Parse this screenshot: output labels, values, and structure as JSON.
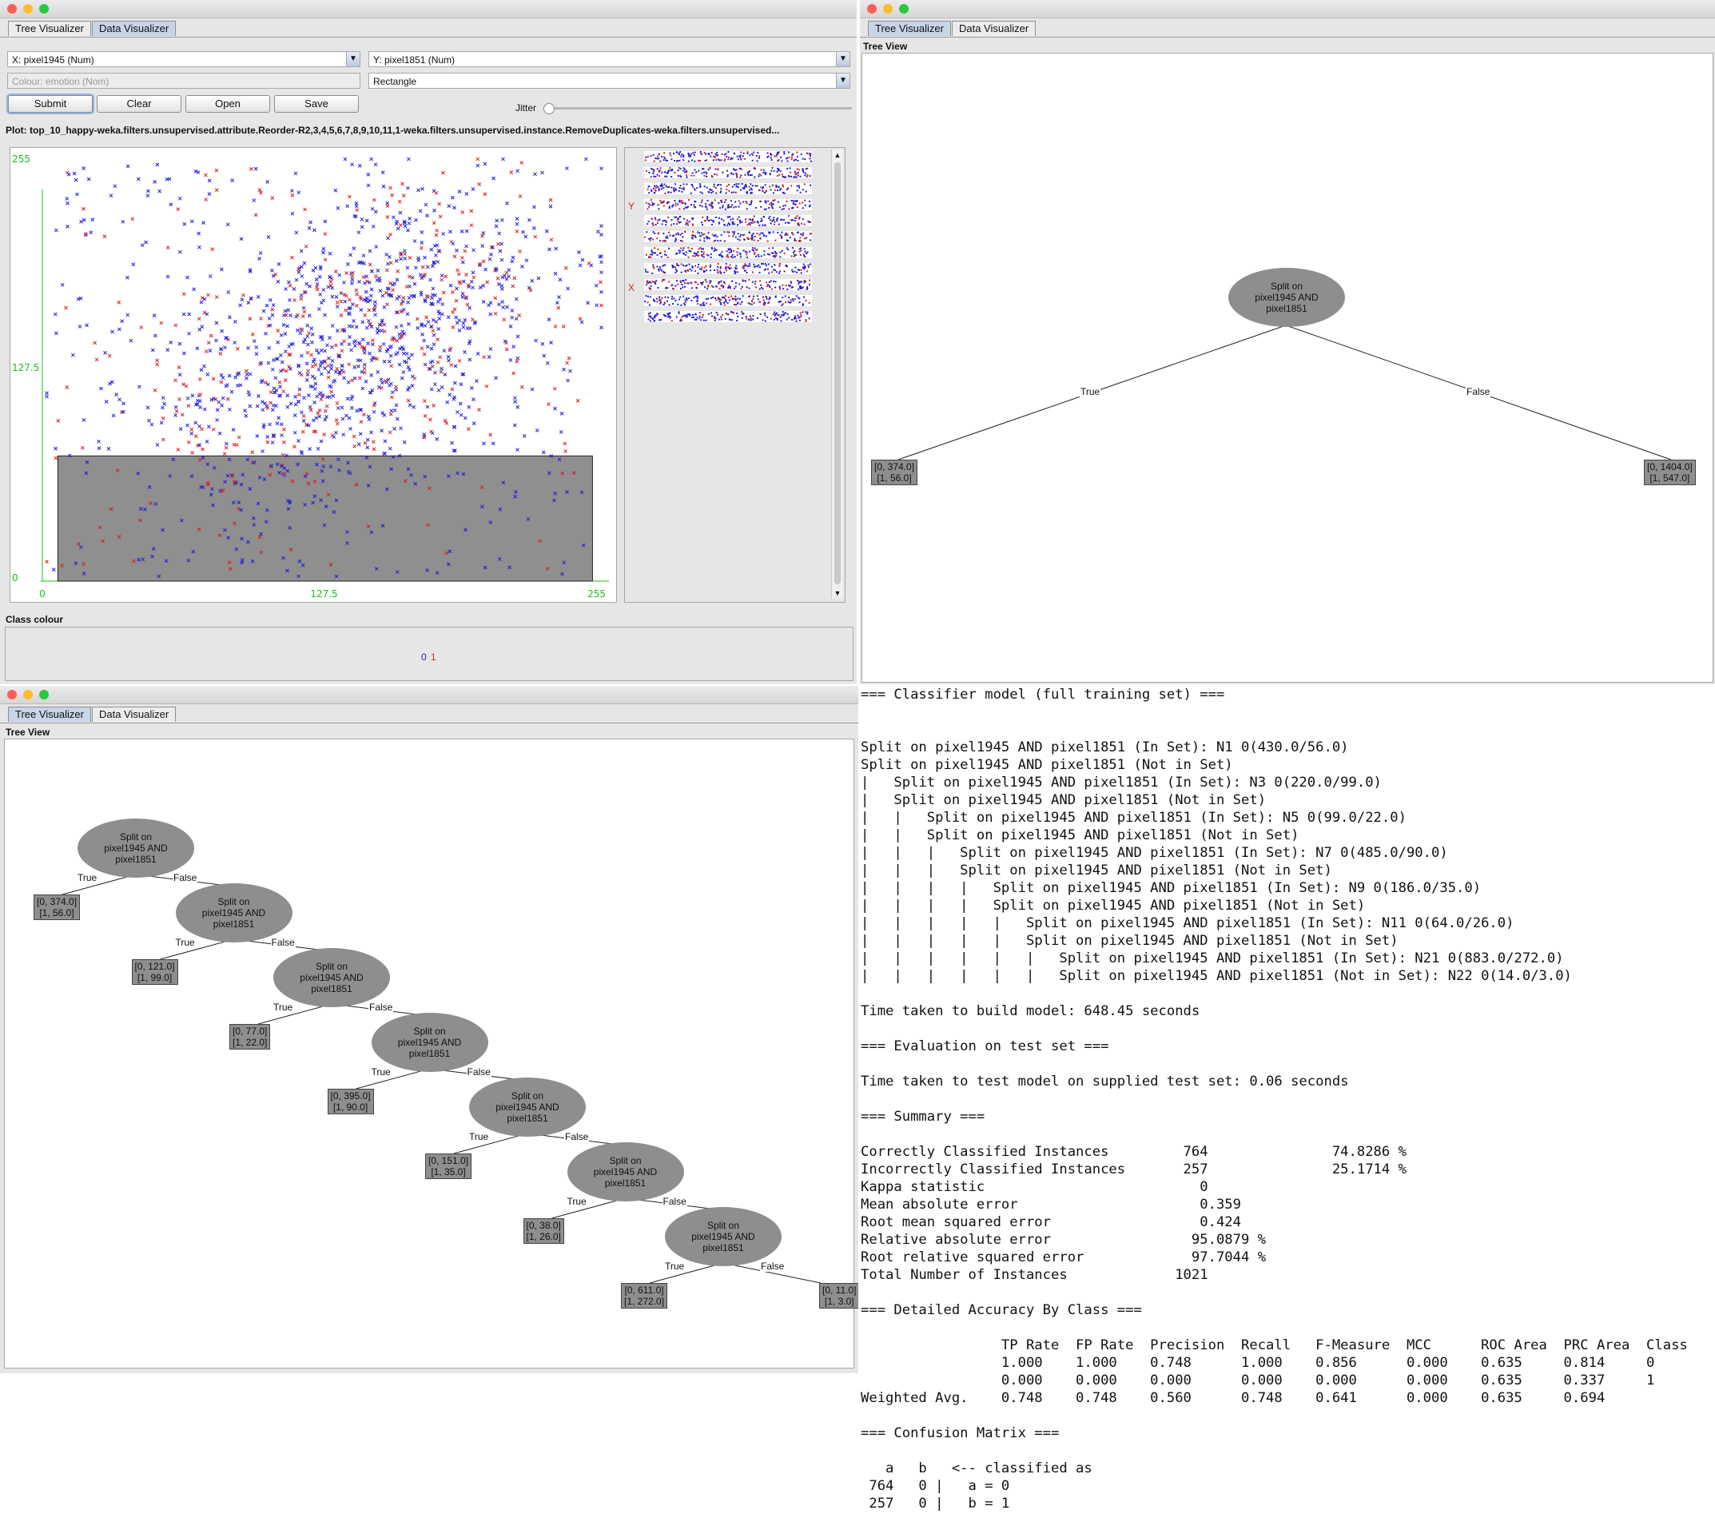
{
  "tabs": [
    "Tree Visualizer",
    "Data Visualizer"
  ],
  "data_visualizer": {
    "x_axis_select": "X: pixel1945 (Num)",
    "y_axis_select": "Y: pixel1851 (Num)",
    "colour_select": "Colour: emotion (Nom)",
    "shape_select": "Rectangle",
    "buttons": {
      "submit": "Submit",
      "clear": "Clear",
      "open": "Open",
      "save": "Save"
    },
    "jitter_label": "Jitter",
    "jitter_value": 0,
    "plot_title": "Plot: top_10_happy-weka.filters.unsupervised.attribute.Reorder-R2,3,4,5,6,7,8,9,10,11,1-weka.filters.unsupervised.instance.RemoveDuplicates-weka.filters.unsupervised...",
    "class_colour_label": "Class colour",
    "class_values": [
      "0",
      "1"
    ],
    "strip_y_label": "Y",
    "strip_x_label": "X"
  },
  "chart_data": {
    "type": "scatter",
    "title": "",
    "xlabel": "",
    "ylabel": "",
    "xlim": [
      0,
      255
    ],
    "ylim": [
      0,
      255
    ],
    "x_tick_labels": [
      "0",
      "127.5",
      "255"
    ],
    "y_tick_labels": [
      "0",
      "127.5",
      "255"
    ],
    "series": [
      {
        "name": "0",
        "color": "#1f1fd6"
      },
      {
        "name": "1",
        "color": "#d62020"
      }
    ],
    "selection_rectangle": {
      "x": [
        7,
        249
      ],
      "y": [
        0,
        74
      ]
    }
  },
  "tree_view_label": "Tree View",
  "small_tree": {
    "root": "Split on\npixel1945 AND\npixel1851",
    "true_label": "True",
    "false_label": "False",
    "leaf_true": "[0, 374.0]\n[1, 56.0]",
    "leaf_false": "[0, 1404.0]\n[1, 547.0]"
  },
  "big_tree": {
    "node_label": "Split on\npixel1945 AND\npixel1851",
    "true_label": "True",
    "false_label": "False",
    "true_leaves": [
      "[0, 374.0]\n[1, 56.0]",
      "[0, 121.0]\n[1, 99.0]",
      "[0, 77.0]\n[1, 22.0]",
      "[0, 395.0]\n[1, 90.0]",
      "[0, 151.0]\n[1, 35.0]",
      "[0, 38.0]\n[1, 26.0]",
      "[0, 611.0]\n[1, 272.0]"
    ],
    "final_false_leaf": "[0, 11.0]\n[1, 3.0]"
  },
  "classifier_output": "=== Classifier model (full training set) ===\n\n\nSplit on pixel1945 AND pixel1851 (In Set): N1 0(430.0/56.0)\nSplit on pixel1945 AND pixel1851 (Not in Set)\n|   Split on pixel1945 AND pixel1851 (In Set): N3 0(220.0/99.0)\n|   Split on pixel1945 AND pixel1851 (Not in Set)\n|   |   Split on pixel1945 AND pixel1851 (In Set): N5 0(99.0/22.0)\n|   |   Split on pixel1945 AND pixel1851 (Not in Set)\n|   |   |   Split on pixel1945 AND pixel1851 (In Set): N7 0(485.0/90.0)\n|   |   |   Split on pixel1945 AND pixel1851 (Not in Set)\n|   |   |   |   Split on pixel1945 AND pixel1851 (In Set): N9 0(186.0/35.0)\n|   |   |   |   Split on pixel1945 AND pixel1851 (Not in Set)\n|   |   |   |   |   Split on pixel1945 AND pixel1851 (In Set): N11 0(64.0/26.0)\n|   |   |   |   |   Split on pixel1945 AND pixel1851 (Not in Set)\n|   |   |   |   |   |   Split on pixel1945 AND pixel1851 (In Set): N21 0(883.0/272.0)\n|   |   |   |   |   |   Split on pixel1945 AND pixel1851 (Not in Set): N22 0(14.0/3.0)\n\nTime taken to build model: 648.45 seconds\n\n=== Evaluation on test set ===\n\nTime taken to test model on supplied test set: 0.06 seconds\n\n=== Summary ===\n\nCorrectly Classified Instances         764               74.8286 %\nIncorrectly Classified Instances       257               25.1714 %\nKappa statistic                          0     \nMean absolute error                      0.359 \nRoot mean squared error                  0.424 \nRelative absolute error                 95.0879 %\nRoot relative squared error             97.7044 %\nTotal Number of Instances             1021     \n\n=== Detailed Accuracy By Class ===\n\n                 TP Rate  FP Rate  Precision  Recall   F-Measure  MCC      ROC Area  PRC Area  Class\n                 1.000    1.000    0.748      1.000    0.856      0.000    0.635     0.814     0\n                 0.000    0.000    0.000      0.000    0.000      0.000    0.635     0.337     1\nWeighted Avg.    0.748    0.748    0.560      0.748    0.641      0.000    0.635     0.694     \n\n=== Confusion Matrix ===\n\n   a   b   <-- classified as\n 764   0 |   a = 0\n 257   0 |   b = 1"
}
